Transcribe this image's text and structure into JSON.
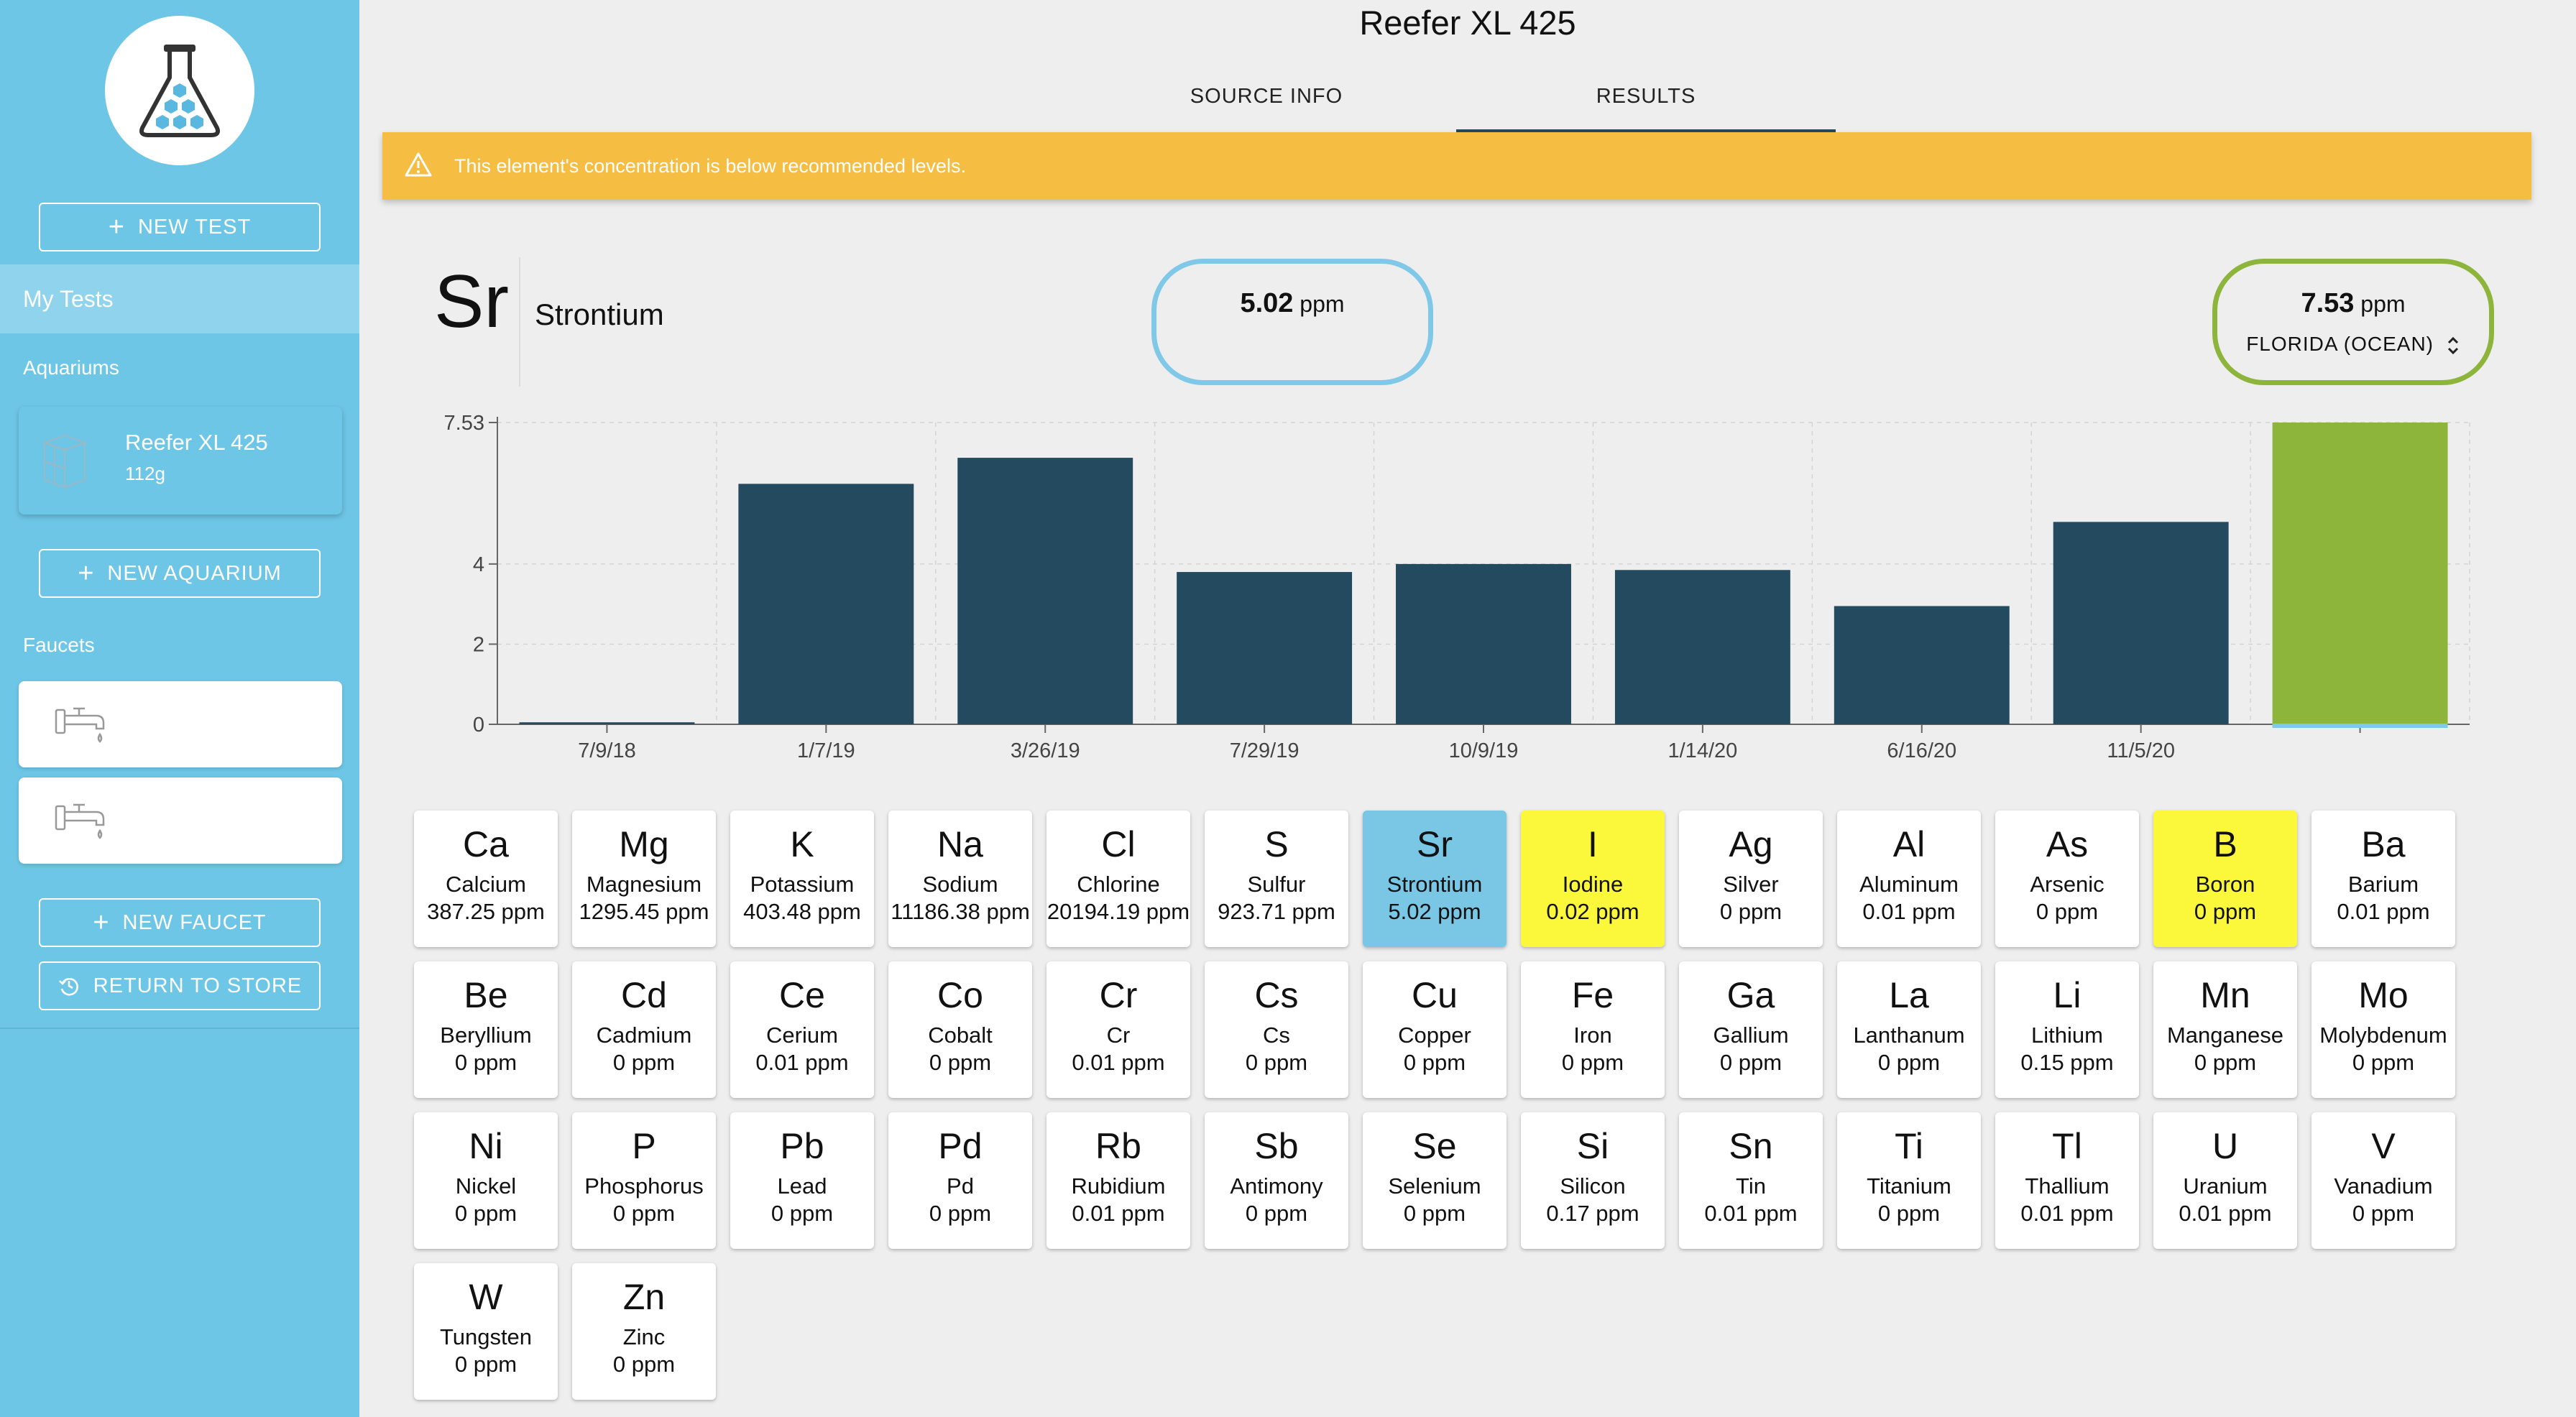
{
  "sidebar": {
    "new_test": "NEW TEST",
    "my_tests": "My Tests",
    "aquariums_heading": "Aquariums",
    "aquarium": {
      "name": "Reefer XL 425",
      "volume": "112g"
    },
    "new_aquarium": "NEW AQUARIUM",
    "faucets_heading": "Faucets",
    "new_faucet": "NEW FAUCET",
    "return_to_store": "RETURN TO STORE"
  },
  "header": {
    "title": "Reefer XL 425",
    "tabs": [
      {
        "label": "SOURCE INFO"
      },
      {
        "label": "RESULTS"
      }
    ],
    "active_tab": "RESULTS"
  },
  "alert": {
    "text": "This element's concentration is below recommended levels.",
    "color": "#f5bd42"
  },
  "detail": {
    "symbol": "Sr",
    "name": "Strontium",
    "measured": {
      "value": "5.02",
      "unit": "ppm"
    },
    "target": {
      "value": "7.53",
      "unit": "ppm",
      "location": "FLORIDA (OCEAN)"
    }
  },
  "colors": {
    "sidebar": "#6ec6e6",
    "bar": "#234a5e",
    "target_bar": "#8db53c",
    "selected_tile": "#79c7e5",
    "warning_tile": "#fbf73a"
  },
  "chart_data": {
    "type": "bar",
    "categories": [
      "7/9/18",
      "1/7/19",
      "3/26/19",
      "7/29/19",
      "10/9/19",
      "1/14/20",
      "6/16/20",
      "11/5/20",
      ""
    ],
    "values": [
      0.05,
      6.0,
      6.65,
      3.8,
      4.0,
      3.85,
      2.95,
      5.05,
      7.53
    ],
    "highlight_last": true,
    "yticks": [
      "0",
      "2",
      "4",
      "7.53"
    ],
    "ytick_values": [
      0,
      2,
      4,
      7.53
    ],
    "ylim": [
      0,
      7.53
    ],
    "grid": true,
    "xlabel": "",
    "ylabel": ""
  },
  "elements": [
    {
      "symbol": "Ca",
      "name": "Calcium",
      "value": "387.25 ppm",
      "state": "normal"
    },
    {
      "symbol": "Mg",
      "name": "Magnesium",
      "value": "1295.45 ppm",
      "state": "normal"
    },
    {
      "symbol": "K",
      "name": "Potassium",
      "value": "403.48 ppm",
      "state": "normal"
    },
    {
      "symbol": "Na",
      "name": "Sodium",
      "value": "11186.38 ppm",
      "state": "normal"
    },
    {
      "symbol": "Cl",
      "name": "Chlorine",
      "value": "20194.19 ppm",
      "state": "normal"
    },
    {
      "symbol": "S",
      "name": "Sulfur",
      "value": "923.71 ppm",
      "state": "normal"
    },
    {
      "symbol": "Sr",
      "name": "Strontium",
      "value": "5.02 ppm",
      "state": "selected"
    },
    {
      "symbol": "I",
      "name": "Iodine",
      "value": "0.02 ppm",
      "state": "warning"
    },
    {
      "symbol": "Ag",
      "name": "Silver",
      "value": "0 ppm",
      "state": "normal"
    },
    {
      "symbol": "Al",
      "name": "Aluminum",
      "value": "0.01 ppm",
      "state": "normal"
    },
    {
      "symbol": "As",
      "name": "Arsenic",
      "value": "0 ppm",
      "state": "normal"
    },
    {
      "symbol": "B",
      "name": "Boron",
      "value": "0 ppm",
      "state": "warning"
    },
    {
      "symbol": "Ba",
      "name": "Barium",
      "value": "0.01 ppm",
      "state": "normal"
    },
    {
      "symbol": "Be",
      "name": "Beryllium",
      "value": "0 ppm",
      "state": "normal"
    },
    {
      "symbol": "Cd",
      "name": "Cadmium",
      "value": "0 ppm",
      "state": "normal"
    },
    {
      "symbol": "Ce",
      "name": "Cerium",
      "value": "0.01 ppm",
      "state": "normal"
    },
    {
      "symbol": "Co",
      "name": "Cobalt",
      "value": "0 ppm",
      "state": "normal"
    },
    {
      "symbol": "Cr",
      "name": "Cr",
      "value": "0.01 ppm",
      "state": "normal"
    },
    {
      "symbol": "Cs",
      "name": "Cs",
      "value": "0 ppm",
      "state": "normal"
    },
    {
      "symbol": "Cu",
      "name": "Copper",
      "value": "0 ppm",
      "state": "normal"
    },
    {
      "symbol": "Fe",
      "name": "Iron",
      "value": "0 ppm",
      "state": "normal"
    },
    {
      "symbol": "Ga",
      "name": "Gallium",
      "value": "0 ppm",
      "state": "normal"
    },
    {
      "symbol": "La",
      "name": "Lanthanum",
      "value": "0 ppm",
      "state": "normal"
    },
    {
      "symbol": "Li",
      "name": "Lithium",
      "value": "0.15 ppm",
      "state": "normal"
    },
    {
      "symbol": "Mn",
      "name": "Manganese",
      "value": "0 ppm",
      "state": "normal"
    },
    {
      "symbol": "Mo",
      "name": "Molybdenum",
      "value": "0 ppm",
      "state": "normal"
    },
    {
      "symbol": "Ni",
      "name": "Nickel",
      "value": "0 ppm",
      "state": "normal"
    },
    {
      "symbol": "P",
      "name": "Phosphorus",
      "value": "0 ppm",
      "state": "normal"
    },
    {
      "symbol": "Pb",
      "name": "Lead",
      "value": "0 ppm",
      "state": "normal"
    },
    {
      "symbol": "Pd",
      "name": "Pd",
      "value": "0 ppm",
      "state": "normal"
    },
    {
      "symbol": "Rb",
      "name": "Rubidium",
      "value": "0.01 ppm",
      "state": "normal"
    },
    {
      "symbol": "Sb",
      "name": "Antimony",
      "value": "0 ppm",
      "state": "normal"
    },
    {
      "symbol": "Se",
      "name": "Selenium",
      "value": "0 ppm",
      "state": "normal"
    },
    {
      "symbol": "Si",
      "name": "Silicon",
      "value": "0.17 ppm",
      "state": "normal"
    },
    {
      "symbol": "Sn",
      "name": "Tin",
      "value": "0.01 ppm",
      "state": "normal"
    },
    {
      "symbol": "Ti",
      "name": "Titanium",
      "value": "0 ppm",
      "state": "normal"
    },
    {
      "symbol": "Tl",
      "name": "Thallium",
      "value": "0.01 ppm",
      "state": "normal"
    },
    {
      "symbol": "U",
      "name": "Uranium",
      "value": "0.01 ppm",
      "state": "normal"
    },
    {
      "symbol": "V",
      "name": "Vanadium",
      "value": "0 ppm",
      "state": "normal"
    },
    {
      "symbol": "W",
      "name": "Tungsten",
      "value": "0 ppm",
      "state": "normal"
    },
    {
      "symbol": "Zn",
      "name": "Zinc",
      "value": "0 ppm",
      "state": "normal"
    }
  ]
}
